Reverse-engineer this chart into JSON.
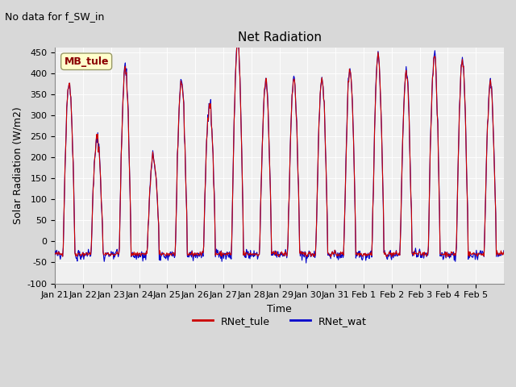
{
  "title": "Net Radiation",
  "suptitle": "No data for f_SW_in",
  "ylabel": "Solar Radiation (W/m2)",
  "xlabel": "Time",
  "ylim": [
    -100,
    460
  ],
  "yticks": [
    -100,
    -50,
    0,
    50,
    100,
    150,
    200,
    250,
    300,
    350,
    400,
    450
  ],
  "xtick_labels": [
    "Jan 21",
    "Jan 22",
    "Jan 23",
    "Jan 24",
    "Jan 25",
    "Jan 26",
    "Jan 27",
    "Jan 28",
    "Jan 29",
    "Jan 30",
    "Jan 31",
    "Feb 1",
    "Feb 2",
    "Feb 3",
    "Feb 4",
    "Feb 5"
  ],
  "legend_label1": "RNet_tule",
  "legend_label2": "RNet_wat",
  "legend_box_label": "MB_tule",
  "color_tule": "#cc0000",
  "color_wat": "#0000cc",
  "plot_bg": "#f0f0f0",
  "n_days": 16,
  "points_per_day": 48,
  "night_val_tule": -30,
  "day_peaks": [
    380,
    245,
    410,
    200,
    380,
    330,
    470,
    380,
    385,
    390,
    410,
    440,
    400,
    440,
    430,
    380
  ]
}
